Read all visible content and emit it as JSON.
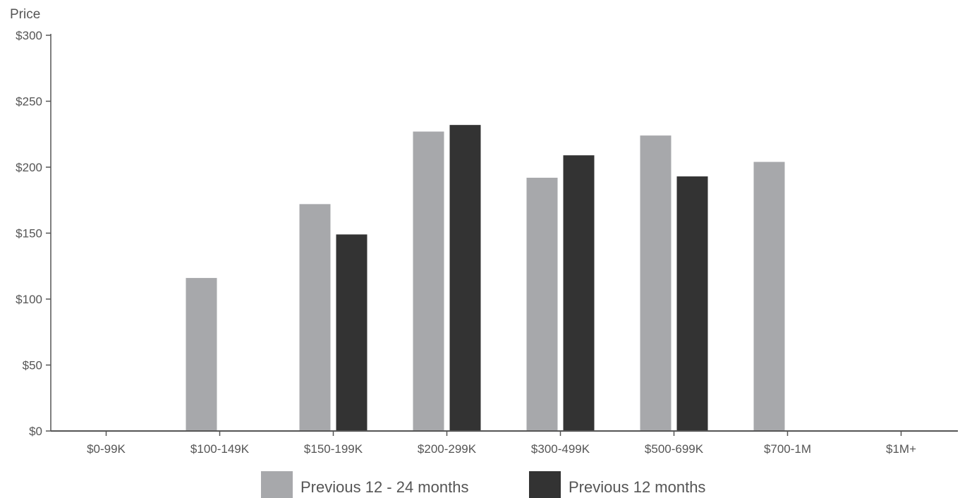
{
  "chart_data": {
    "type": "bar",
    "ylabel": "Price",
    "ylim": [
      0,
      300
    ],
    "yticks": [
      0,
      50,
      100,
      150,
      200,
      250,
      300
    ],
    "ytick_labels": [
      "$0",
      "$50",
      "$100",
      "$150",
      "$200",
      "$250",
      "$300"
    ],
    "categories": [
      "$0-99K",
      "$100-149K",
      "$150-199K",
      "$200-299K",
      "$300-499K",
      "$500-699K",
      "$700-1M",
      "$1M+"
    ],
    "series": [
      {
        "name": "Previous 12 - 24 months",
        "color": "#a7a8ab",
        "values": [
          null,
          116,
          172,
          227,
          192,
          224,
          204,
          null
        ]
      },
      {
        "name": "Previous 12 months",
        "color": "#333333",
        "values": [
          null,
          null,
          149,
          232,
          209,
          193,
          null,
          null
        ]
      }
    ],
    "legend_position": "bottom",
    "grid": false
  }
}
